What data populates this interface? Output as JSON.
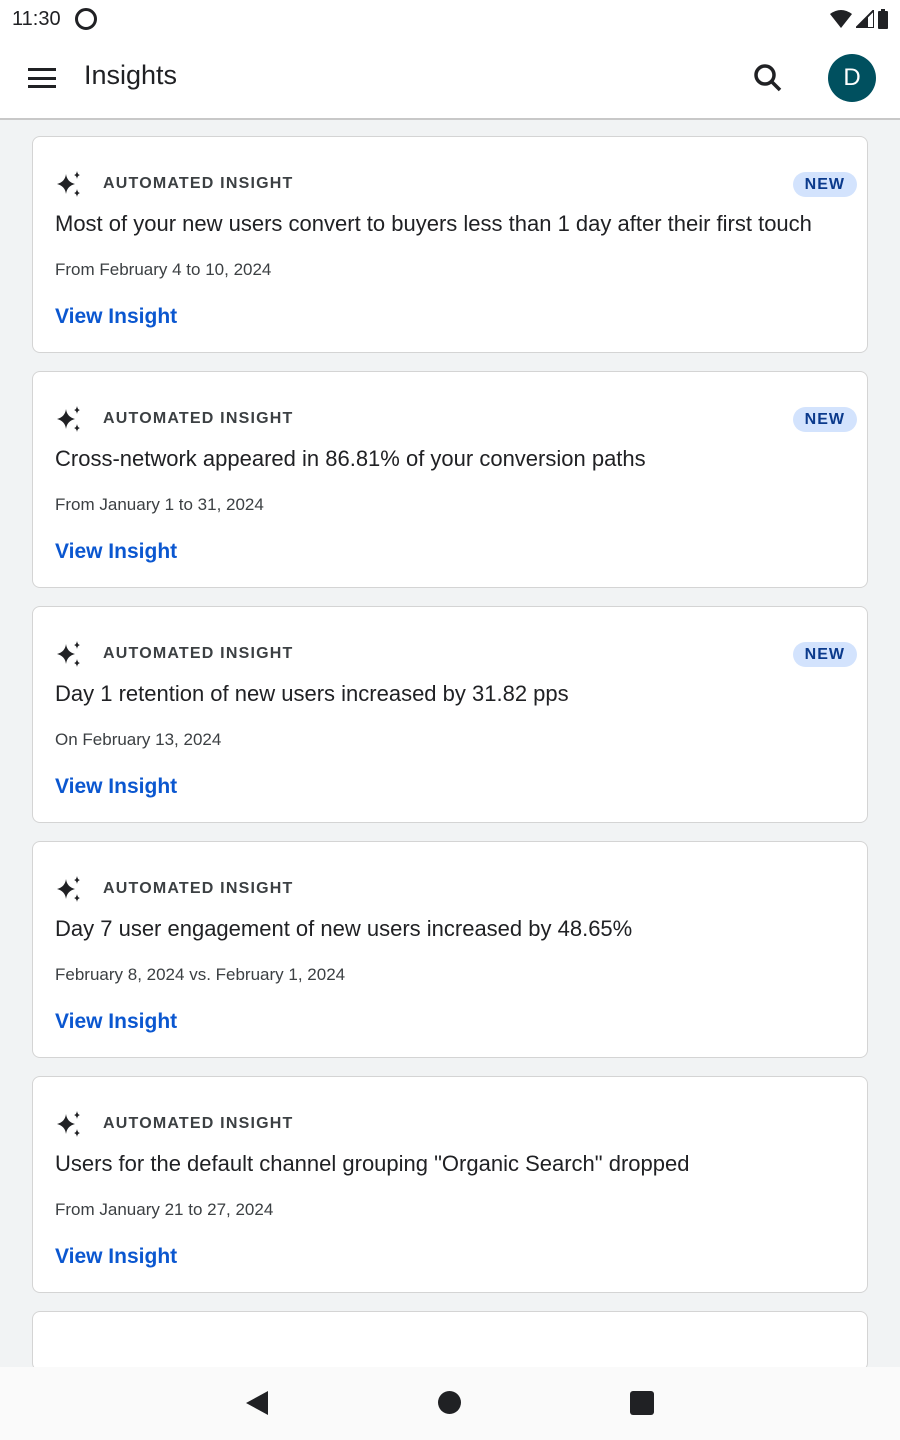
{
  "status_bar": {
    "time": "11:30"
  },
  "app_bar": {
    "title": "Insights",
    "avatar_letter": "D"
  },
  "cards": [
    {
      "label": "AUTOMATED INSIGHT",
      "badge": "NEW",
      "title": "Most of your new users convert to buyers less than 1 day after their first touch",
      "date": "From February 4 to 10, 2024",
      "link": "View Insight"
    },
    {
      "label": "AUTOMATED INSIGHT",
      "badge": "NEW",
      "title": "Cross-network appeared in 86.81% of your conversion paths",
      "date": "From January 1 to 31, 2024",
      "link": "View Insight"
    },
    {
      "label": "AUTOMATED INSIGHT",
      "badge": "NEW",
      "title": "Day 1 retention of new users increased by 31.82 pps",
      "date": "On February 13, 2024",
      "link": "View Insight"
    },
    {
      "label": "AUTOMATED INSIGHT",
      "title": "Day 7 user engagement of new users increased by 48.65%",
      "date": "February 8, 2024 vs. February 1, 2024",
      "link": "View Insight"
    },
    {
      "label": "AUTOMATED INSIGHT",
      "title": "Users for the default channel grouping \"Organic Search\" dropped",
      "date": "From January 21 to 27, 2024",
      "link": "View Insight"
    }
  ],
  "colors": {
    "avatar": "#00505f",
    "link": "#0b57d0",
    "badge_bg": "#d3e3fd",
    "badge_text": "#0b3a8c"
  }
}
